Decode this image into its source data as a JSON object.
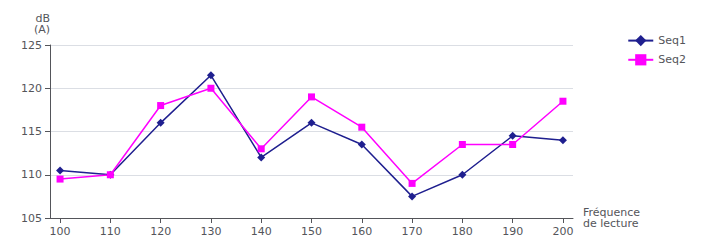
{
  "chart_data": {
    "type": "line",
    "x": [
      100,
      110,
      120,
      130,
      140,
      150,
      160,
      170,
      180,
      190,
      200
    ],
    "series": [
      {
        "name": "Seq1",
        "color": "#1F1F8F",
        "marker": "diamond",
        "values": [
          110.5,
          110.0,
          116.0,
          121.5,
          112.0,
          116.0,
          113.5,
          107.5,
          110.0,
          114.5,
          114.0
        ]
      },
      {
        "name": "Seq2",
        "color": "#FF00FF",
        "marker": "square",
        "values": [
          109.5,
          110.0,
          118.0,
          120.0,
          113.0,
          119.0,
          115.5,
          109.0,
          113.5,
          113.5,
          118.5
        ]
      }
    ],
    "xlim": [
      98,
      202
    ],
    "ylim": [
      105,
      125
    ],
    "xticks": [
      100,
      110,
      120,
      130,
      140,
      150,
      160,
      170,
      180,
      190,
      200
    ],
    "yticks": [
      105,
      110,
      115,
      120,
      125
    ],
    "ylabel": "dB\n(A)",
    "xlabel": "Fréquence\nde lecture",
    "grid": true,
    "legend": "right"
  }
}
